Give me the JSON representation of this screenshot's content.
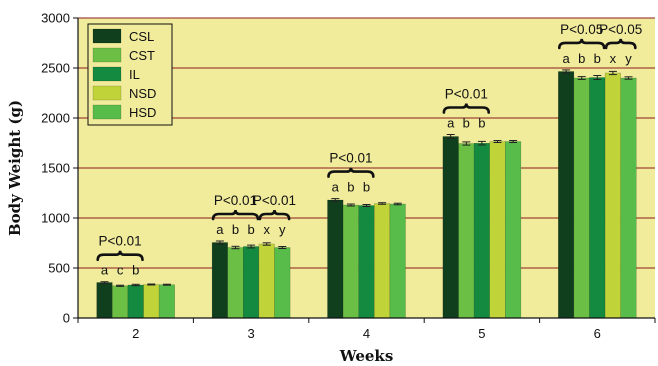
{
  "chart_data": {
    "type": "bar",
    "title": "",
    "xlabel": "Weeks",
    "ylabel": "Body Weight (g)",
    "ylim": [
      0,
      3000
    ],
    "yticks": [
      0,
      500,
      1000,
      1500,
      2000,
      2500,
      3000
    ],
    "grid": true,
    "legend_position": "top-left",
    "background": "#f1eb9c",
    "categories": [
      "2",
      "3",
      "4",
      "5",
      "6"
    ],
    "series": [
      {
        "name": "CSL",
        "color": "#0f3f1d",
        "values": [
          355,
          755,
          1180,
          1815,
          2465
        ],
        "errors": [
          8,
          15,
          14,
          20,
          16
        ]
      },
      {
        "name": "CST",
        "color": "#6cbf45",
        "values": [
          322,
          705,
          1130,
          1745,
          2400
        ],
        "errors": [
          6,
          12,
          10,
          16,
          14
        ]
      },
      {
        "name": "IL",
        "color": "#138a3f",
        "values": [
          330,
          715,
          1125,
          1748,
          2405
        ],
        "errors": [
          7,
          14,
          10,
          18,
          20
        ]
      },
      {
        "name": "NSD",
        "color": "#c0d43a",
        "values": [
          335,
          740,
          1145,
          1765,
          2450
        ],
        "errors": [
          5,
          12,
          8,
          10,
          16
        ]
      },
      {
        "name": "HSD",
        "color": "#58bc4a",
        "values": [
          333,
          705,
          1140,
          1765,
          2400
        ],
        "errors": [
          5,
          10,
          8,
          10,
          12
        ]
      }
    ],
    "annotations": {
      "significance": [
        {
          "category_index": 0,
          "label": "P<0.01",
          "from_series": 0,
          "to_series": 2
        },
        {
          "category_index": 1,
          "label": "P<0.01",
          "from_series": 0,
          "to_series": 2
        },
        {
          "category_index": 1,
          "label": "P<0.01",
          "from_series": 3,
          "to_series": 4
        },
        {
          "category_index": 2,
          "label": "P<0.01",
          "from_series": 0,
          "to_series": 2
        },
        {
          "category_index": 3,
          "label": "P<0.01",
          "from_series": 0,
          "to_series": 2
        },
        {
          "category_index": 4,
          "label": "P<0.05",
          "from_series": 0,
          "to_series": 2
        },
        {
          "category_index": 4,
          "label": "P<0.05",
          "from_series": 3,
          "to_series": 4
        }
      ],
      "letters": [
        [
          "a",
          "c",
          "b",
          "",
          ""
        ],
        [
          "a",
          "b",
          "b",
          "x",
          "y"
        ],
        [
          "a",
          "b",
          "b",
          "",
          ""
        ],
        [
          "a",
          "b",
          "b",
          "",
          ""
        ],
        [
          "a",
          "b",
          "b",
          "x",
          "y"
        ]
      ]
    }
  }
}
